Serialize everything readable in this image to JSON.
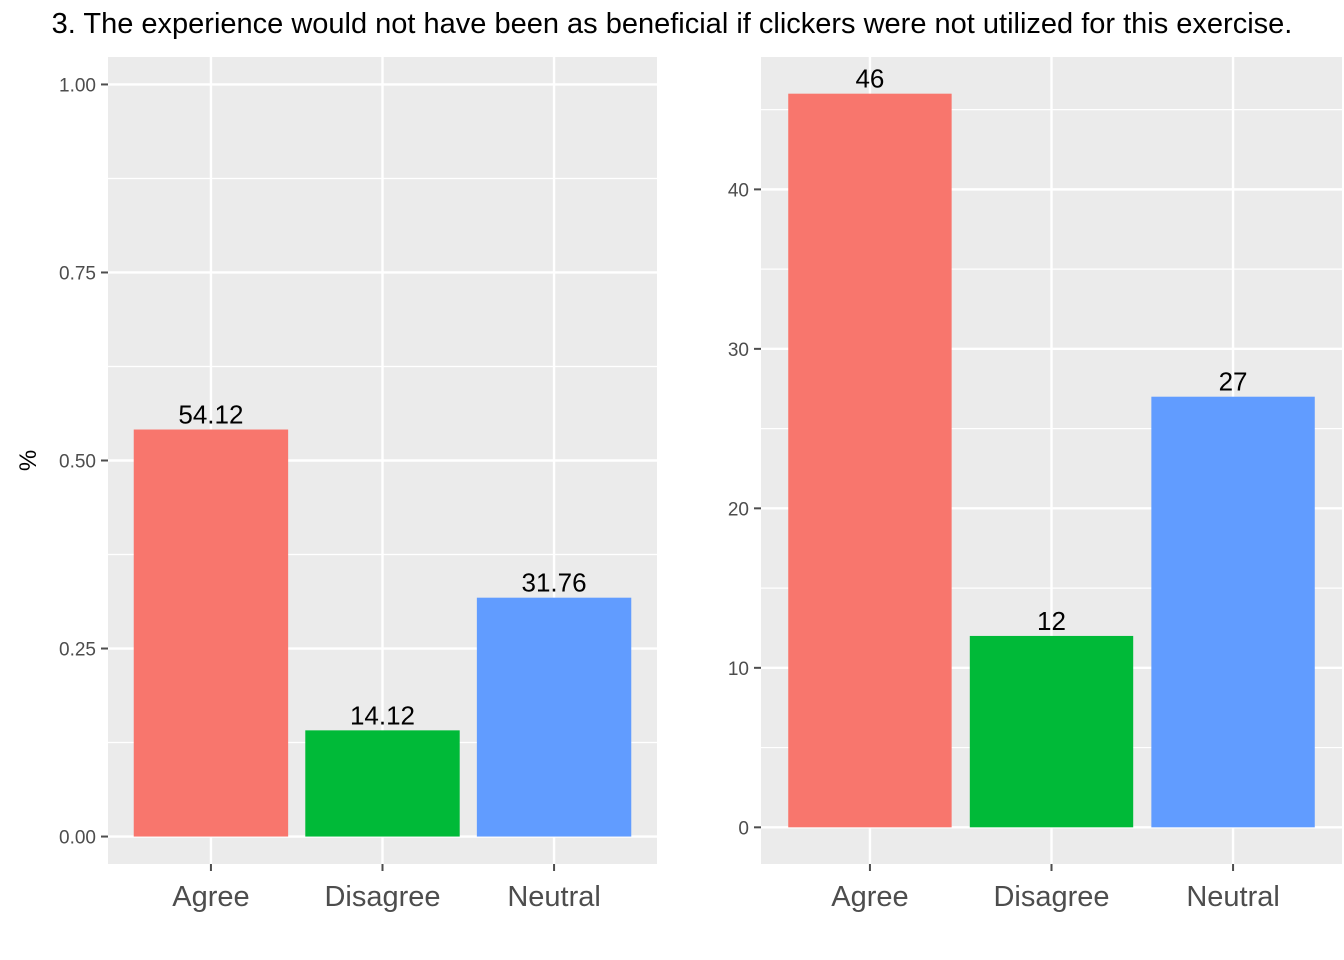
{
  "figure": {
    "title": "3. The experience would not have been as beneficial if clickers were not utilized for this exercise.",
    "panel_background": "#EBEBEB",
    "grid_color": "#FFFFFF",
    "tick_color": "#4D4D4D"
  },
  "chart_data": [
    {
      "type": "bar",
      "categories": [
        "Agree",
        "Disagree",
        "Neutral"
      ],
      "values": [
        0.5412,
        0.1412,
        0.3176
      ],
      "data_labels": [
        "54.12",
        "14.12",
        "31.76"
      ],
      "colors": [
        "#F8766D",
        "#00BA38",
        "#619CFF"
      ],
      "title": "",
      "xlabel": "",
      "ylabel": "%",
      "ylim": [
        -0.0365,
        1.0365
      ],
      "yticks": [
        0,
        0.25,
        0.5,
        0.75,
        1
      ],
      "ytick_labels": [
        "0.00",
        "0.25",
        "0.50",
        "0.75",
        "1.00"
      ],
      "grid": true,
      "legend": "none"
    },
    {
      "type": "bar",
      "categories": [
        "Agree",
        "Disagree",
        "Neutral"
      ],
      "values": [
        46,
        12,
        27
      ],
      "data_labels": [
        "46",
        "12",
        "27"
      ],
      "colors": [
        "#F8766D",
        "#00BA38",
        "#619CFF"
      ],
      "title": "",
      "xlabel": "",
      "ylabel": "",
      "ylim": [
        -2.3,
        48.3
      ],
      "yticks": [
        0,
        10,
        20,
        30,
        40
      ],
      "ytick_labels": [
        "0",
        "10",
        "20",
        "30",
        "40"
      ],
      "grid": true,
      "legend": "none"
    }
  ]
}
